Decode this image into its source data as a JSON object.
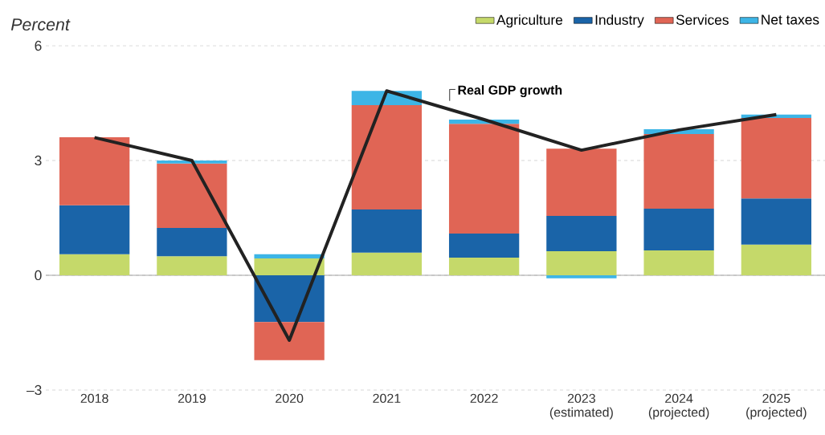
{
  "chart_data": {
    "type": "bar",
    "stacked": true,
    "ylabel": "Percent",
    "categories": [
      "2018",
      "2019",
      "2020",
      "2021",
      "2022",
      "2023 (estimated)",
      "2024 (projected)",
      "2025 (projected)"
    ],
    "series": [
      {
        "name": "Agriculture",
        "color": "#c5d96a",
        "values": [
          0.55,
          0.5,
          0.44,
          0.59,
          0.46,
          0.63,
          0.65,
          0.8
        ]
      },
      {
        "name": "Industry",
        "color": "#1a64a8",
        "values": [
          1.28,
          0.74,
          -1.22,
          1.13,
          0.63,
          0.92,
          1.09,
          1.21
        ]
      },
      {
        "name": "Services",
        "color": "#e06555",
        "values": [
          1.78,
          1.68,
          -1.0,
          2.73,
          2.87,
          1.76,
          1.95,
          2.1
        ]
      },
      {
        "name": "Net taxes",
        "color": "#3db5e6",
        "values": [
          0.0,
          0.08,
          0.11,
          0.37,
          0.11,
          -0.08,
          0.13,
          0.09
        ]
      },
      {
        "name": "Real GDP growth",
        "type": "line",
        "color": "#222222",
        "values": [
          3.6,
          3.0,
          -1.7,
          4.82,
          4.07,
          3.27,
          3.8,
          4.2
        ]
      }
    ],
    "ylim": [
      -3,
      6
    ],
    "yticks": [
      {
        "value": -3,
        "label": "–3"
      },
      0,
      3,
      6
    ],
    "grid": "y",
    "legend": "top right",
    "marker": "none",
    "line_style": "solid"
  }
}
